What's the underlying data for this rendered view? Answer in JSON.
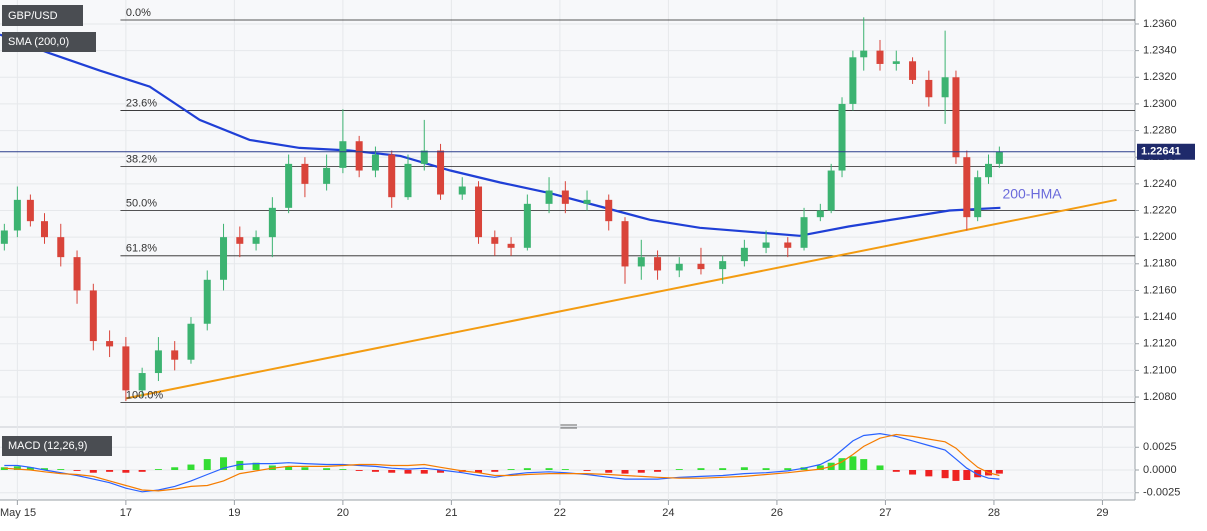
{
  "chart_data": {
    "type": "candlestick",
    "symbol": "GBP/USD",
    "annotation": "200-HMA",
    "up_color": "#3cb371",
    "down_color": "#d9443a",
    "x": [
      -0.12,
      0,
      0.12,
      0.25,
      0.4,
      0.55,
      0.7,
      0.85,
      1.0,
      1.15,
      1.3,
      1.45,
      1.6,
      1.75,
      1.9,
      2.05,
      2.2,
      2.35,
      2.5,
      2.65,
      2.85,
      3.0,
      3.15,
      3.3,
      3.45,
      3.6,
      3.75,
      3.9,
      4.1,
      4.25,
      4.4,
      4.55,
      4.7,
      4.9,
      5.05,
      5.25,
      5.45,
      5.6,
      5.75,
      5.9,
      6.1,
      6.3,
      6.5,
      6.7,
      6.9,
      7.1,
      7.25,
      7.4,
      7.5,
      7.6,
      7.7,
      7.8,
      7.95,
      8.1,
      8.25,
      8.4,
      8.55,
      8.65,
      8.75,
      8.85,
      8.95,
      9.05
    ],
    "open": [
      1.2195,
      1.2205,
      1.2228,
      1.2212,
      1.22,
      1.2185,
      1.216,
      1.2122,
      1.2118,
      1.2085,
      1.2098,
      1.2115,
      1.2108,
      1.2135,
      1.2168,
      1.22,
      1.2195,
      1.22,
      1.2222,
      1.2255,
      1.224,
      1.2252,
      1.2272,
      1.225,
      1.2262,
      1.223,
      1.2255,
      1.2265,
      1.2232,
      1.2238,
      1.22,
      1.2195,
      1.2192,
      1.2225,
      1.2235,
      1.2225,
      1.2228,
      1.2212,
      1.2178,
      1.2185,
      1.2175,
      1.218,
      1.2176,
      1.2182,
      1.2192,
      1.2196,
      1.2192,
      1.2215,
      1.222,
      1.225,
      1.23,
      1.2335,
      1.234,
      1.233,
      1.2332,
      1.2318,
      1.2305,
      1.232,
      1.226,
      1.2215,
      1.2245,
      1.2255
    ],
    "high": [
      1.221,
      1.2238,
      1.2232,
      1.2218,
      1.221,
      1.219,
      1.2165,
      1.213,
      1.2125,
      1.2102,
      1.2125,
      1.2122,
      1.214,
      1.2175,
      1.221,
      1.2208,
      1.2205,
      1.223,
      1.2262,
      1.226,
      1.2262,
      1.2296,
      1.2276,
      1.2268,
      1.2265,
      1.2262,
      1.2288,
      1.227,
      1.2245,
      1.2242,
      1.2205,
      1.22,
      1.2232,
      1.2245,
      1.2242,
      1.2235,
      1.2232,
      1.2215,
      1.2198,
      1.219,
      1.2185,
      1.2192,
      1.2186,
      1.2198,
      1.2205,
      1.22,
      1.2222,
      1.2225,
      1.2255,
      1.2305,
      1.234,
      1.2365,
      1.2348,
      1.234,
      1.2335,
      1.2325,
      1.2355,
      1.2325,
      1.2265,
      1.225,
      1.2262,
      1.2268
    ],
    "low": [
      1.219,
      1.22,
      1.2208,
      1.2195,
      1.2178,
      1.215,
      1.2115,
      1.211,
      1.2077,
      1.208,
      1.2092,
      1.21,
      1.2105,
      1.213,
      1.216,
      1.2185,
      1.219,
      1.2185,
      1.2218,
      1.223,
      1.2235,
      1.2248,
      1.2245,
      1.2245,
      1.2222,
      1.2228,
      1.225,
      1.2228,
      1.2228,
      1.2195,
      1.2186,
      1.2186,
      1.219,
      1.2218,
      1.2218,
      1.222,
      1.2205,
      1.2165,
      1.2168,
      1.2168,
      1.217,
      1.2172,
      1.2165,
      1.2178,
      1.2188,
      1.2185,
      1.219,
      1.2212,
      1.2218,
      1.2245,
      1.2295,
      1.2325,
      1.2325,
      1.2325,
      1.2315,
      1.2298,
      1.2285,
      1.2255,
      1.2205,
      1.2212,
      1.224,
      1.2252
    ],
    "close": [
      1.2205,
      1.2228,
      1.2212,
      1.22,
      1.2185,
      1.216,
      1.2122,
      1.2118,
      1.2085,
      1.2098,
      1.2115,
      1.2108,
      1.2135,
      1.2168,
      1.22,
      1.2195,
      1.22,
      1.2222,
      1.2255,
      1.224,
      1.2252,
      1.2272,
      1.225,
      1.2262,
      1.223,
      1.2255,
      1.2265,
      1.2232,
      1.2238,
      1.22,
      1.2195,
      1.2192,
      1.2225,
      1.2235,
      1.2225,
      1.2228,
      1.2212,
      1.2178,
      1.2185,
      1.2175,
      1.218,
      1.2176,
      1.2182,
      1.2192,
      1.2196,
      1.2192,
      1.2215,
      1.222,
      1.225,
      1.23,
      1.2335,
      1.234,
      1.233,
      1.2332,
      1.2318,
      1.2305,
      1.232,
      1.226,
      1.2215,
      1.2245,
      1.2255,
      1.2264
    ],
    "last_price": 1.22641,
    "xlim": [
      -0.16,
      10.3
    ],
    "xticks": [
      {
        "value": 0,
        "label": "May 15"
      },
      {
        "value": 1,
        "label": "17"
      },
      {
        "value": 2,
        "label": "19"
      },
      {
        "value": 3,
        "label": "20"
      },
      {
        "value": 4,
        "label": "21"
      },
      {
        "value": 5,
        "label": "22"
      },
      {
        "value": 6,
        "label": "24"
      },
      {
        "value": 7,
        "label": "26"
      },
      {
        "value": 8,
        "label": "27"
      },
      {
        "value": 9,
        "label": "28"
      },
      {
        "value": 10,
        "label": "29"
      }
    ],
    "ylim": [
      1.2059,
      1.2378
    ],
    "yticks": [
      {
        "value": 1.208,
        "label": "1.2080"
      },
      {
        "value": 1.21,
        "label": "1.2100"
      },
      {
        "value": 1.212,
        "label": "1.2120"
      },
      {
        "value": 1.214,
        "label": "1.2140"
      },
      {
        "value": 1.216,
        "label": "1.2160"
      },
      {
        "value": 1.218,
        "label": "1.2180"
      },
      {
        "value": 1.22,
        "label": "1.2200"
      },
      {
        "value": 1.222,
        "label": "1.2220"
      },
      {
        "value": 1.224,
        "label": "1.2240"
      },
      {
        "value": 1.226,
        "label": "1.2260"
      },
      {
        "value": 1.228,
        "label": "1.2280"
      },
      {
        "value": 1.23,
        "label": "1.2300"
      },
      {
        "value": 1.232,
        "label": "1.2320"
      },
      {
        "value": 1.234,
        "label": "1.2340"
      },
      {
        "value": 1.236,
        "label": "1.2360"
      }
    ],
    "sma": {
      "name": "SMA (200,0)",
      "color": "#1f3fd6",
      "x": [
        -0.16,
        0.3,
        0.76,
        1.22,
        1.68,
        2.14,
        2.6,
        3.06,
        3.53,
        3.99,
        4.45,
        4.91,
        5.37,
        5.83,
        6.29,
        6.75,
        7.21,
        7.66,
        8.13,
        8.59,
        9.06
      ],
      "values": [
        1.2352,
        1.2338,
        1.2325,
        1.2313,
        1.2288,
        1.2273,
        1.2267,
        1.2265,
        1.2261,
        1.225,
        1.2241,
        1.2233,
        1.2223,
        1.2213,
        1.2207,
        1.2204,
        1.2201,
        1.2208,
        1.2214,
        1.222,
        1.2222
      ]
    },
    "trendline": {
      "color": "#f39c12",
      "x": [
        1.0,
        10.13
      ],
      "values": [
        1.2079,
        1.2228
      ]
    },
    "fib_levels": [
      {
        "value": 1.2363,
        "label": "0.0%"
      },
      {
        "value": 1.2295,
        "label": "23.6%"
      },
      {
        "value": 1.2253,
        "label": "38.2%"
      },
      {
        "value": 1.222,
        "label": "50.0%"
      },
      {
        "value": 1.2186,
        "label": "61.8%"
      },
      {
        "value": 1.2076,
        "label": "100.0%"
      }
    ],
    "macd": {
      "name": "MACD (12,26,9)",
      "ylim": [
        -0.0033,
        0.0044
      ],
      "yticks": [
        {
          "value": 0.0025,
          "label": "0.0025"
        },
        {
          "value": 0,
          "label": "0.0000"
        },
        {
          "value": -0.0025,
          "label": "-0.0025"
        }
      ],
      "up_color": "#33dd33",
      "down_color": "#ee2222",
      "macd_color": "#2962ff",
      "signal_color": "#f57c00",
      "histogram": [
        0.0003,
        0.0004,
        0.0003,
        0.0002,
        0.0001,
        -0.0001,
        -0.0003,
        -0.0002,
        -0.0003,
        -0.0002,
        0.0001,
        0.0003,
        0.0006,
        0.0012,
        0.0014,
        0.001,
        0.0008,
        0.0005,
        0.0004,
        0.0003,
        0.0002,
        0.0001,
        -0.0001,
        -0.0002,
        -0.0003,
        -0.0004,
        -0.0004,
        -0.0003,
        -0.0002,
        -0.0003,
        -0.0002,
        0.0001,
        0.0002,
        0.0002,
        0.0001,
        -0.0001,
        -0.0003,
        -0.0004,
        -0.0003,
        -0.0002,
        0.0001,
        0.0002,
        0.0002,
        0.0003,
        0.0002,
        0.0002,
        0.0003,
        0.0005,
        0.0008,
        0.0013,
        0.0015,
        0.0012,
        0.0005,
        -0.0002,
        -0.0005,
        -0.0007,
        -0.0009,
        -0.0012,
        -0.0011,
        -0.0008,
        -0.0006,
        -0.0004
      ],
      "macd": [
        0.0005,
        0.0005,
        0.0003,
        0,
        -0.0003,
        -0.0006,
        -0.001,
        -0.0014,
        -0.002,
        -0.0024,
        -0.0022,
        -0.0018,
        -0.0012,
        -0.0005,
        0.0002,
        0.0006,
        0.0007,
        0.0007,
        0.0008,
        0.0007,
        0.0006,
        0.0006,
        0.0005,
        0.0004,
        0.0002,
        0.0001,
        0.0002,
        0,
        -0.0003,
        -0.0006,
        -0.0008,
        -0.0005,
        -0.0003,
        -0.0002,
        -0.0003,
        -0.0005,
        -0.0008,
        -0.001,
        -0.001,
        -0.001,
        -0.0008,
        -0.0007,
        -0.0006,
        -0.0004,
        -0.0003,
        -0.0001,
        0.0002,
        0.0006,
        0.0012,
        0.0022,
        0.0032,
        0.0038,
        0.004,
        0.0037,
        0.0032,
        0.0027,
        0.0022,
        0.0012,
        0.0002,
        -0.0005,
        -0.0009,
        -0.001
      ],
      "signal": [
        0.0002,
        0.0001,
        0,
        -0.0002,
        -0.0004,
        -0.0005,
        -0.0007,
        -0.0012,
        -0.0017,
        -0.0022,
        -0.0023,
        -0.0021,
        -0.0018,
        -0.0017,
        -0.0012,
        -0.0004,
        -0.0001,
        0.0002,
        0.0004,
        0.0004,
        0.0004,
        0.0005,
        0.0006,
        0.0006,
        0.0005,
        0.0005,
        0.0006,
        0.0003,
        -0.0001,
        -0.0003,
        -0.0006,
        -0.0006,
        -0.0005,
        -0.0004,
        -0.0004,
        -0.0004,
        -0.0005,
        -0.0006,
        -0.0007,
        -0.0008,
        -0.0009,
        -0.0009,
        -0.0008,
        -0.0007,
        -0.0005,
        -0.0003,
        -0.0001,
        0.0001,
        0.0004,
        0.0009,
        0.0017,
        0.0026,
        0.0035,
        0.0039,
        0.0037,
        0.0034,
        0.0031,
        0.0024,
        0.0013,
        0.0003,
        -0.0003,
        -0.0006
      ]
    }
  }
}
